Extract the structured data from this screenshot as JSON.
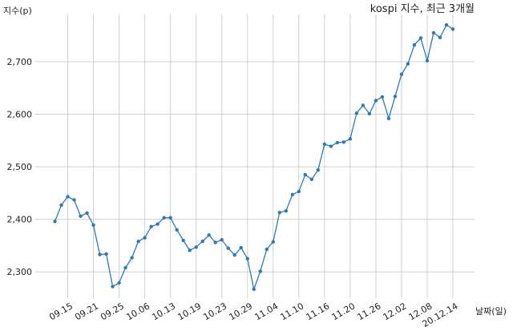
{
  "chart_data": {
    "type": "line",
    "title": "kospi 지수, 최근 3개월",
    "ylabel": "지수(p)",
    "xlabel": "날짜(일)",
    "ylim": [
      2250,
      2790
    ],
    "yticks": [
      2300,
      2400,
      2500,
      2600,
      2700
    ],
    "ytick_labels": [
      "2,300",
      "2,400",
      "2,500",
      "2,600",
      "2,700"
    ],
    "xtick_labels": [
      "09.15",
      "09.21",
      "09.25",
      "10.06",
      "10.13",
      "10.19",
      "10.23",
      "10.29",
      "11.04",
      "11.10",
      "11.16",
      "11.20",
      "11.26",
      "12.02",
      "12.08",
      "20.12.14"
    ],
    "xtick_indices": [
      2,
      6,
      10,
      14,
      18,
      22,
      26,
      30,
      34,
      38,
      42,
      46,
      50,
      54,
      58,
      62
    ],
    "grid": true,
    "series": [
      {
        "color": "#2c7bb6",
        "values": [
          2396,
          2427,
          2443,
          2437,
          2406,
          2412,
          2389,
          2333,
          2334,
          2272,
          2279,
          2308,
          2327,
          2358,
          2365,
          2386,
          2391,
          2403,
          2403,
          2380,
          2360,
          2341,
          2347,
          2358,
          2370,
          2356,
          2361,
          2345,
          2332,
          2346,
          2325,
          2267,
          2301,
          2343,
          2357,
          2413,
          2416,
          2447,
          2453,
          2485,
          2476,
          2494,
          2543,
          2539,
          2546,
          2547,
          2553,
          2602,
          2617,
          2601,
          2626,
          2633,
          2592,
          2634,
          2676,
          2696,
          2732,
          2745,
          2702,
          2755,
          2746,
          2770,
          2762
        ]
      }
    ]
  }
}
